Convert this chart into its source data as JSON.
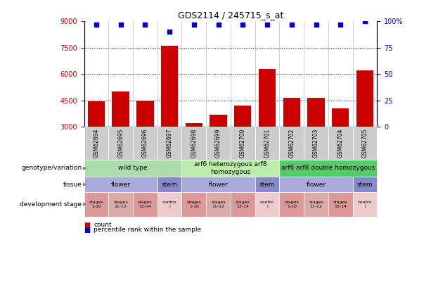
{
  "title": "GDS2114 / 245715_s_at",
  "samples": [
    "GSM62694",
    "GSM62695",
    "GSM62696",
    "GSM62697",
    "GSM62698",
    "GSM62699",
    "GSM62700",
    "GSM62701",
    "GSM62702",
    "GSM62703",
    "GSM62704",
    "GSM62705"
  ],
  "counts": [
    4450,
    5000,
    4500,
    7600,
    3200,
    3700,
    4200,
    6300,
    4650,
    4650,
    4050,
    6200
  ],
  "percentiles": [
    97,
    97,
    97,
    90,
    97,
    97,
    97,
    97,
    97,
    97,
    97,
    100
  ],
  "bar_color": "#cc0000",
  "dot_color": "#0000cc",
  "ylim_left": [
    3000,
    9000
  ],
  "ylim_right": [
    0,
    100
  ],
  "yticks_left": [
    3000,
    4500,
    6000,
    7500,
    9000
  ],
  "yticks_right": [
    0,
    25,
    50,
    75,
    100
  ],
  "genotype_groups": [
    {
      "label": "wild type",
      "start": 0,
      "end": 3,
      "color": "#aaddaa"
    },
    {
      "label": "arf6 heterozygous arf8\nhomozygous",
      "start": 4,
      "end": 7,
      "color": "#bbeeaa"
    },
    {
      "label": "arf6 arf8 double homozygous",
      "start": 8,
      "end": 11,
      "color": "#55cc66"
    }
  ],
  "tissue_groups": [
    {
      "label": "flower",
      "start": 0,
      "end": 2,
      "color": "#aaaadd"
    },
    {
      "label": "stem",
      "start": 3,
      "end": 3,
      "color": "#8888cc"
    },
    {
      "label": "flower",
      "start": 4,
      "end": 6,
      "color": "#aaaadd"
    },
    {
      "label": "stem",
      "start": 7,
      "end": 7,
      "color": "#8888cc"
    },
    {
      "label": "flower",
      "start": 8,
      "end": 10,
      "color": "#aaaadd"
    },
    {
      "label": "stem",
      "start": 11,
      "end": 11,
      "color": "#8888cc"
    }
  ],
  "stage_groups": [
    {
      "label": "stages\n1-10",
      "start": 0,
      "end": 0,
      "color": "#dd9999"
    },
    {
      "label": "stages\n11-12",
      "start": 1,
      "end": 1,
      "color": "#ddaaaa"
    },
    {
      "label": "stages\n13-14",
      "start": 2,
      "end": 2,
      "color": "#dd9999"
    },
    {
      "label": "contro\nl",
      "start": 3,
      "end": 3,
      "color": "#eecccc"
    },
    {
      "label": "stages\n1-10",
      "start": 4,
      "end": 4,
      "color": "#dd9999"
    },
    {
      "label": "stages\n11-12",
      "start": 5,
      "end": 5,
      "color": "#ddaaaa"
    },
    {
      "label": "stages\n13-14",
      "start": 6,
      "end": 6,
      "color": "#dd9999"
    },
    {
      "label": "contro\nl",
      "start": 7,
      "end": 7,
      "color": "#eecccc"
    },
    {
      "label": "stages\n1-10",
      "start": 8,
      "end": 8,
      "color": "#dd9999"
    },
    {
      "label": "stages\n11-12",
      "start": 9,
      "end": 9,
      "color": "#ddaaaa"
    },
    {
      "label": "stages\n13-14",
      "start": 10,
      "end": 10,
      "color": "#dd9999"
    },
    {
      "label": "contro\nl",
      "start": 11,
      "end": 11,
      "color": "#eecccc"
    }
  ],
  "row_labels": [
    "genotype/variation",
    "tissue",
    "development stage"
  ],
  "legend_count_color": "#cc0000",
  "legend_dot_color": "#0000cc",
  "background_color": "#ffffff",
  "sample_bg_color": "#cccccc"
}
